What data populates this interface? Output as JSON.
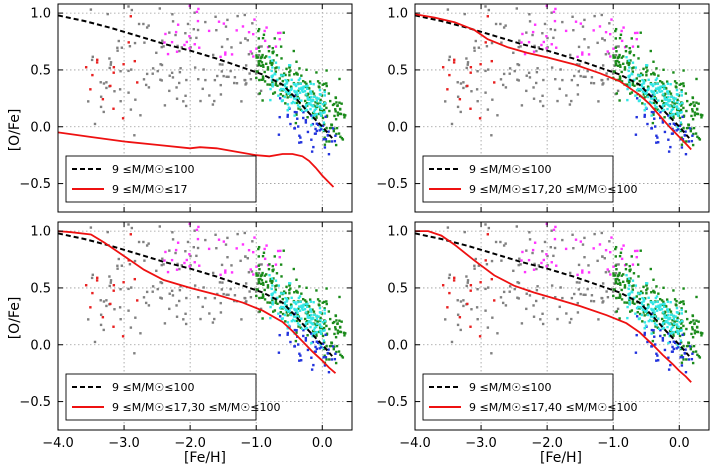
{
  "figure": {
    "xlabel": "[Fe/H]",
    "ylabel": "[O/Fe]"
  },
  "chart_data": [
    {
      "type": "scatter",
      "panel": "top-left",
      "xlim": [
        -4.0,
        0.45
      ],
      "ylim": [
        -0.75,
        1.08
      ],
      "xticks": [
        "−4.0",
        "−3.0",
        "−2.0",
        "−1.0",
        "0.0"
      ],
      "xtick_values": [
        -4.0,
        -3.0,
        -2.0,
        -1.0,
        0.0
      ],
      "yticks": [
        "−0.5",
        "0.0",
        "0.5",
        "1.0"
      ],
      "ytick_values": [
        -0.5,
        0.0,
        0.5,
        1.0
      ],
      "grid": true,
      "show_xticks": false,
      "show_yticks": true,
      "xlabel": "",
      "ylabel": "[O/Fe]",
      "legend_position": "lower-left",
      "series": [
        {
          "name": "9 ≤M/M☉≤100",
          "style": "dashed",
          "color": "#000000",
          "x": [
            -4.0,
            -3.6,
            -3.2,
            -2.8,
            -2.4,
            -2.0,
            -1.6,
            -1.2,
            -0.9,
            -0.6,
            -0.4,
            -0.2,
            0.0,
            0.15
          ],
          "y": [
            0.98,
            0.93,
            0.87,
            0.8,
            0.73,
            0.67,
            0.6,
            0.52,
            0.46,
            0.37,
            0.25,
            0.12,
            0.0,
            -0.1
          ]
        },
        {
          "name": "9 ≤M/M☉≤17",
          "style": "solid",
          "color": "#ee1111",
          "x": [
            -4.0,
            -3.5,
            -3.0,
            -2.5,
            -2.0,
            -1.85,
            -1.6,
            -1.3,
            -1.0,
            -0.8,
            -0.6,
            -0.45,
            -0.3,
            -0.2,
            -0.1,
            0.0,
            0.1,
            0.17
          ],
          "y": [
            -0.05,
            -0.09,
            -0.13,
            -0.16,
            -0.19,
            -0.18,
            -0.19,
            -0.22,
            -0.25,
            -0.26,
            -0.24,
            -0.24,
            -0.26,
            -0.3,
            -0.36,
            -0.43,
            -0.49,
            -0.53
          ]
        }
      ]
    },
    {
      "type": "scatter",
      "panel": "top-right",
      "xlim": [
        -4.0,
        0.45
      ],
      "ylim": [
        -0.75,
        1.08
      ],
      "xticks": [
        "−4.0",
        "−3.0",
        "−2.0",
        "−1.0",
        "0.0"
      ],
      "xtick_values": [
        -4.0,
        -3.0,
        -2.0,
        -1.0,
        0.0
      ],
      "yticks": [
        "−0.5",
        "0.0",
        "0.5",
        "1.0"
      ],
      "ytick_values": [
        -0.5,
        0.0,
        0.5,
        1.0
      ],
      "grid": true,
      "show_xticks": false,
      "show_yticks": true,
      "xlabel": "",
      "ylabel": "",
      "legend_position": "lower-left",
      "series": [
        {
          "name": "9 ≤M/M☉≤100",
          "style": "dashed",
          "color": "#000000",
          "x": [
            -4.0,
            -3.6,
            -3.2,
            -2.8,
            -2.4,
            -2.0,
            -1.6,
            -1.2,
            -0.9,
            -0.6,
            -0.4,
            -0.2,
            0.0,
            0.15
          ],
          "y": [
            0.98,
            0.93,
            0.87,
            0.8,
            0.73,
            0.67,
            0.6,
            0.52,
            0.46,
            0.37,
            0.25,
            0.12,
            0.0,
            -0.1
          ]
        },
        {
          "name": "9 ≤M/M☉≤17,20 ≤M/M☉≤100",
          "style": "solid",
          "color": "#ee1111",
          "x": [
            -4.0,
            -3.7,
            -3.4,
            -3.1,
            -2.9,
            -2.6,
            -2.3,
            -2.0,
            -1.6,
            -1.2,
            -0.9,
            -0.6,
            -0.45,
            -0.3,
            -0.15,
            0.0,
            0.1,
            0.18
          ],
          "y": [
            0.99,
            0.96,
            0.92,
            0.85,
            0.77,
            0.7,
            0.65,
            0.61,
            0.55,
            0.47,
            0.4,
            0.28,
            0.2,
            0.1,
            0.0,
            -0.09,
            -0.15,
            -0.2
          ]
        }
      ]
    },
    {
      "type": "scatter",
      "panel": "bottom-left",
      "xlim": [
        -4.0,
        0.45
      ],
      "ylim": [
        -0.75,
        1.08
      ],
      "xticks": [
        "−4.0",
        "−3.0",
        "−2.0",
        "−1.0",
        "0.0"
      ],
      "xtick_values": [
        -4.0,
        -3.0,
        -2.0,
        -1.0,
        0.0
      ],
      "yticks": [
        "−0.5",
        "0.0",
        "0.5",
        "1.0"
      ],
      "ytick_values": [
        -0.5,
        0.0,
        0.5,
        1.0
      ],
      "grid": true,
      "show_xticks": true,
      "show_yticks": true,
      "xlabel": "[Fe/H]",
      "ylabel": "[O/Fe]",
      "legend_position": "lower-left",
      "series": [
        {
          "name": "9 ≤M/M☉≤100",
          "style": "dashed",
          "color": "#000000",
          "x": [
            -4.0,
            -3.6,
            -3.2,
            -2.8,
            -2.4,
            -2.0,
            -1.6,
            -1.2,
            -0.9,
            -0.6,
            -0.4,
            -0.2,
            0.0,
            0.15
          ],
          "y": [
            0.98,
            0.93,
            0.87,
            0.8,
            0.73,
            0.67,
            0.6,
            0.52,
            0.46,
            0.37,
            0.25,
            0.12,
            0.0,
            -0.1
          ]
        },
        {
          "name": "9 ≤M/M☉≤17,30 ≤M/M☉≤100",
          "style": "solid",
          "color": "#ee1111",
          "x": [
            -4.0,
            -3.8,
            -3.5,
            -3.3,
            -3.0,
            -2.7,
            -2.4,
            -2.0,
            -1.6,
            -1.2,
            -0.9,
            -0.6,
            -0.45,
            -0.3,
            -0.15,
            0.0,
            0.1,
            0.2
          ],
          "y": [
            1.0,
            0.99,
            0.97,
            0.9,
            0.78,
            0.66,
            0.57,
            0.5,
            0.44,
            0.37,
            0.3,
            0.2,
            0.12,
            0.03,
            -0.06,
            -0.14,
            -0.2,
            -0.25
          ]
        }
      ]
    },
    {
      "type": "scatter",
      "panel": "bottom-right",
      "xlim": [
        -4.0,
        0.45
      ],
      "ylim": [
        -0.75,
        1.08
      ],
      "xticks": [
        "−4.0",
        "−3.0",
        "−2.0",
        "−1.0",
        "0.0"
      ],
      "xtick_values": [
        -4.0,
        -3.0,
        -2.0,
        -1.0,
        0.0
      ],
      "yticks": [
        "−0.5",
        "0.0",
        "0.5",
        "1.0"
      ],
      "ytick_values": [
        -0.5,
        0.0,
        0.5,
        1.0
      ],
      "grid": true,
      "show_xticks": true,
      "show_yticks": true,
      "xlabel": "[Fe/H]",
      "ylabel": "",
      "legend_position": "lower-left",
      "series": [
        {
          "name": "9 ≤M/M☉≤100",
          "style": "dashed",
          "color": "#000000",
          "x": [
            -4.0,
            -3.6,
            -3.2,
            -2.8,
            -2.4,
            -2.0,
            -1.6,
            -1.2,
            -0.9,
            -0.6,
            -0.4,
            -0.2,
            0.0,
            0.15
          ],
          "y": [
            0.98,
            0.93,
            0.87,
            0.8,
            0.73,
            0.67,
            0.6,
            0.52,
            0.46,
            0.37,
            0.25,
            0.12,
            0.0,
            -0.1
          ]
        },
        {
          "name": "9 ≤M/M☉≤17,40 ≤M/M☉≤100",
          "style": "solid",
          "color": "#ee1111",
          "x": [
            -4.0,
            -3.8,
            -3.6,
            -3.4,
            -3.1,
            -2.8,
            -2.5,
            -2.2,
            -1.9,
            -1.5,
            -1.1,
            -0.8,
            -0.6,
            -0.4,
            -0.25,
            -0.1,
            0.0,
            0.1,
            0.18
          ],
          "y": [
            1.0,
            1.0,
            0.96,
            0.88,
            0.74,
            0.61,
            0.52,
            0.46,
            0.41,
            0.34,
            0.26,
            0.19,
            0.11,
            0.0,
            -0.09,
            -0.17,
            -0.23,
            -0.28,
            -0.33
          ]
        }
      ]
    }
  ],
  "observation_point_colors": {
    "gray": "#808080",
    "red": "#e82020",
    "magenta": "#ff33ff",
    "green": "#1a8a1a",
    "cyan": "#33e6e6",
    "blue": "#2233dd"
  }
}
